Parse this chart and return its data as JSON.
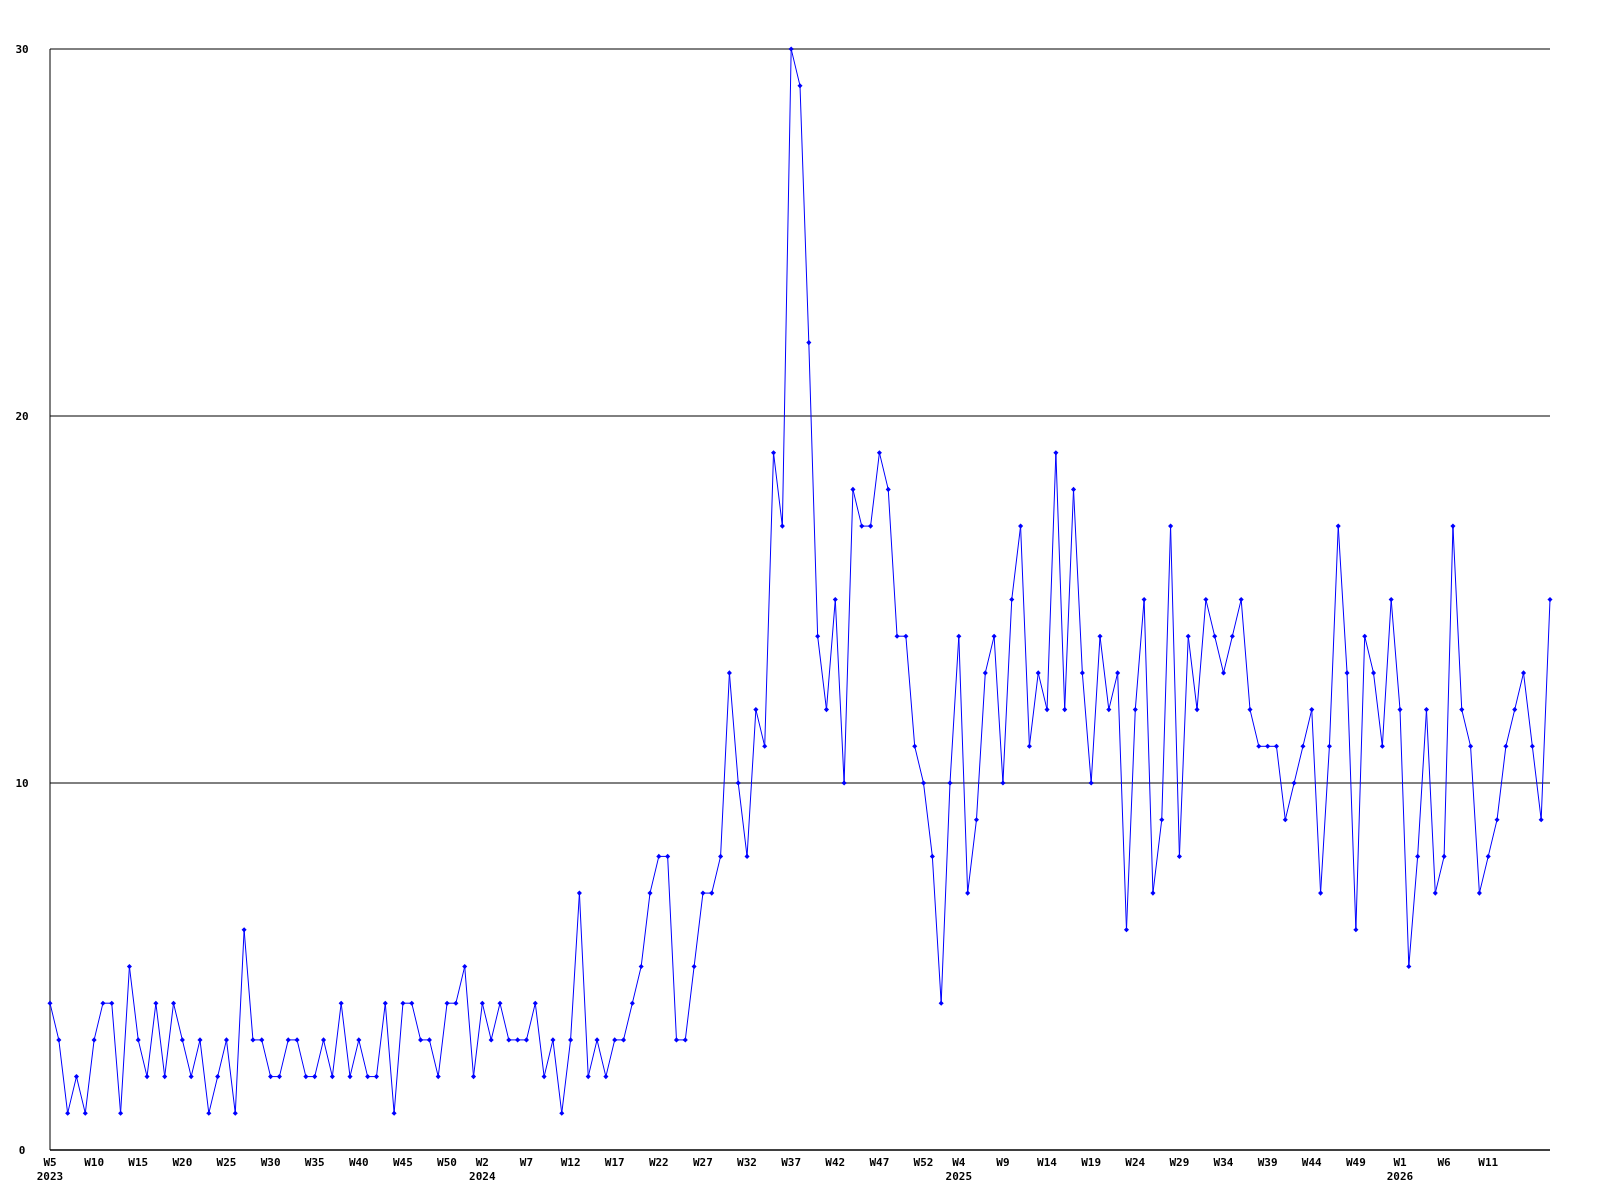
{
  "chart_data": {
    "type": "line",
    "categories": [
      "W5\n2023",
      null,
      null,
      null,
      null,
      "W10",
      null,
      null,
      null,
      null,
      "W15",
      null,
      null,
      null,
      null,
      "W20",
      null,
      null,
      null,
      null,
      "W25",
      null,
      null,
      null,
      null,
      "W30",
      null,
      null,
      null,
      null,
      "W35",
      null,
      null,
      null,
      null,
      "W40",
      null,
      null,
      null,
      null,
      "W45",
      null,
      null,
      null,
      null,
      "W50",
      null,
      null,
      null,
      "W2\n2024",
      null,
      null,
      null,
      null,
      "W7",
      null,
      null,
      null,
      null,
      "W12",
      null,
      null,
      null,
      null,
      "W17",
      null,
      null,
      null,
      null,
      "W22",
      null,
      null,
      null,
      null,
      "W27",
      null,
      null,
      null,
      null,
      "W32",
      null,
      null,
      null,
      null,
      "W37",
      null,
      null,
      null,
      null,
      "W42",
      null,
      null,
      null,
      null,
      "W47",
      null,
      null,
      null,
      null,
      "W52",
      null,
      null,
      null,
      "W4\n2025",
      null,
      null,
      null,
      null,
      "W9",
      null,
      null,
      null,
      null,
      "W14",
      null,
      null,
      null,
      null,
      "W19",
      null,
      null,
      null,
      null,
      "W24",
      null,
      null,
      null,
      null,
      "W29",
      null,
      null,
      null,
      null,
      "W34",
      null,
      null,
      null,
      null,
      "W39",
      null,
      null,
      null,
      null,
      "W44",
      null,
      null,
      null,
      null,
      "W49",
      null,
      null,
      null,
      null,
      "W1\n2026",
      null,
      null,
      null,
      null,
      "W6",
      null,
      null,
      null,
      null,
      "W11",
      null,
      null,
      null,
      null,
      null,
      null,
      null
    ],
    "series": [
      {
        "color": "#0000ff",
        "values": [
          4,
          3,
          1,
          2,
          1,
          3,
          4,
          4,
          1,
          5,
          3,
          2,
          4,
          2,
          4,
          3,
          2,
          3,
          1,
          2,
          3,
          1,
          6,
          3,
          3,
          2,
          2,
          3,
          3,
          2,
          2,
          3,
          2,
          4,
          2,
          3,
          2,
          2,
          4,
          1,
          4,
          4,
          3,
          3,
          2,
          4,
          4,
          5,
          2,
          4,
          3,
          4,
          3,
          3,
          3,
          4,
          2,
          3,
          1,
          3,
          7,
          2,
          3,
          2,
          3,
          3,
          4,
          5,
          7,
          8,
          8,
          3,
          3,
          5,
          7,
          7,
          8,
          13,
          10,
          8,
          12,
          11,
          19,
          17,
          30,
          29,
          22,
          14,
          12,
          15,
          10,
          18,
          17,
          17,
          19,
          18,
          14,
          14,
          11,
          10,
          8,
          4,
          10,
          14,
          7,
          9,
          13,
          14,
          10,
          15,
          17,
          11,
          13,
          12,
          19,
          12,
          18,
          13,
          10,
          14,
          12,
          13,
          6,
          12,
          15,
          7,
          9,
          17,
          8,
          14,
          12,
          15,
          14,
          13,
          14,
          15,
          12,
          11,
          11,
          11,
          9,
          10,
          11,
          12,
          7,
          11,
          17,
          13,
          6,
          14,
          13,
          11,
          15,
          12,
          5,
          8,
          12,
          7,
          8,
          17,
          12,
          11,
          7,
          8,
          9,
          11,
          12,
          13,
          11,
          9,
          15
        ]
      }
    ],
    "ylim": [
      0,
      30
    ],
    "yticks": [
      0,
      10,
      20,
      30
    ],
    "grid": "y",
    "marker": "diamond",
    "line_style": "solid"
  }
}
